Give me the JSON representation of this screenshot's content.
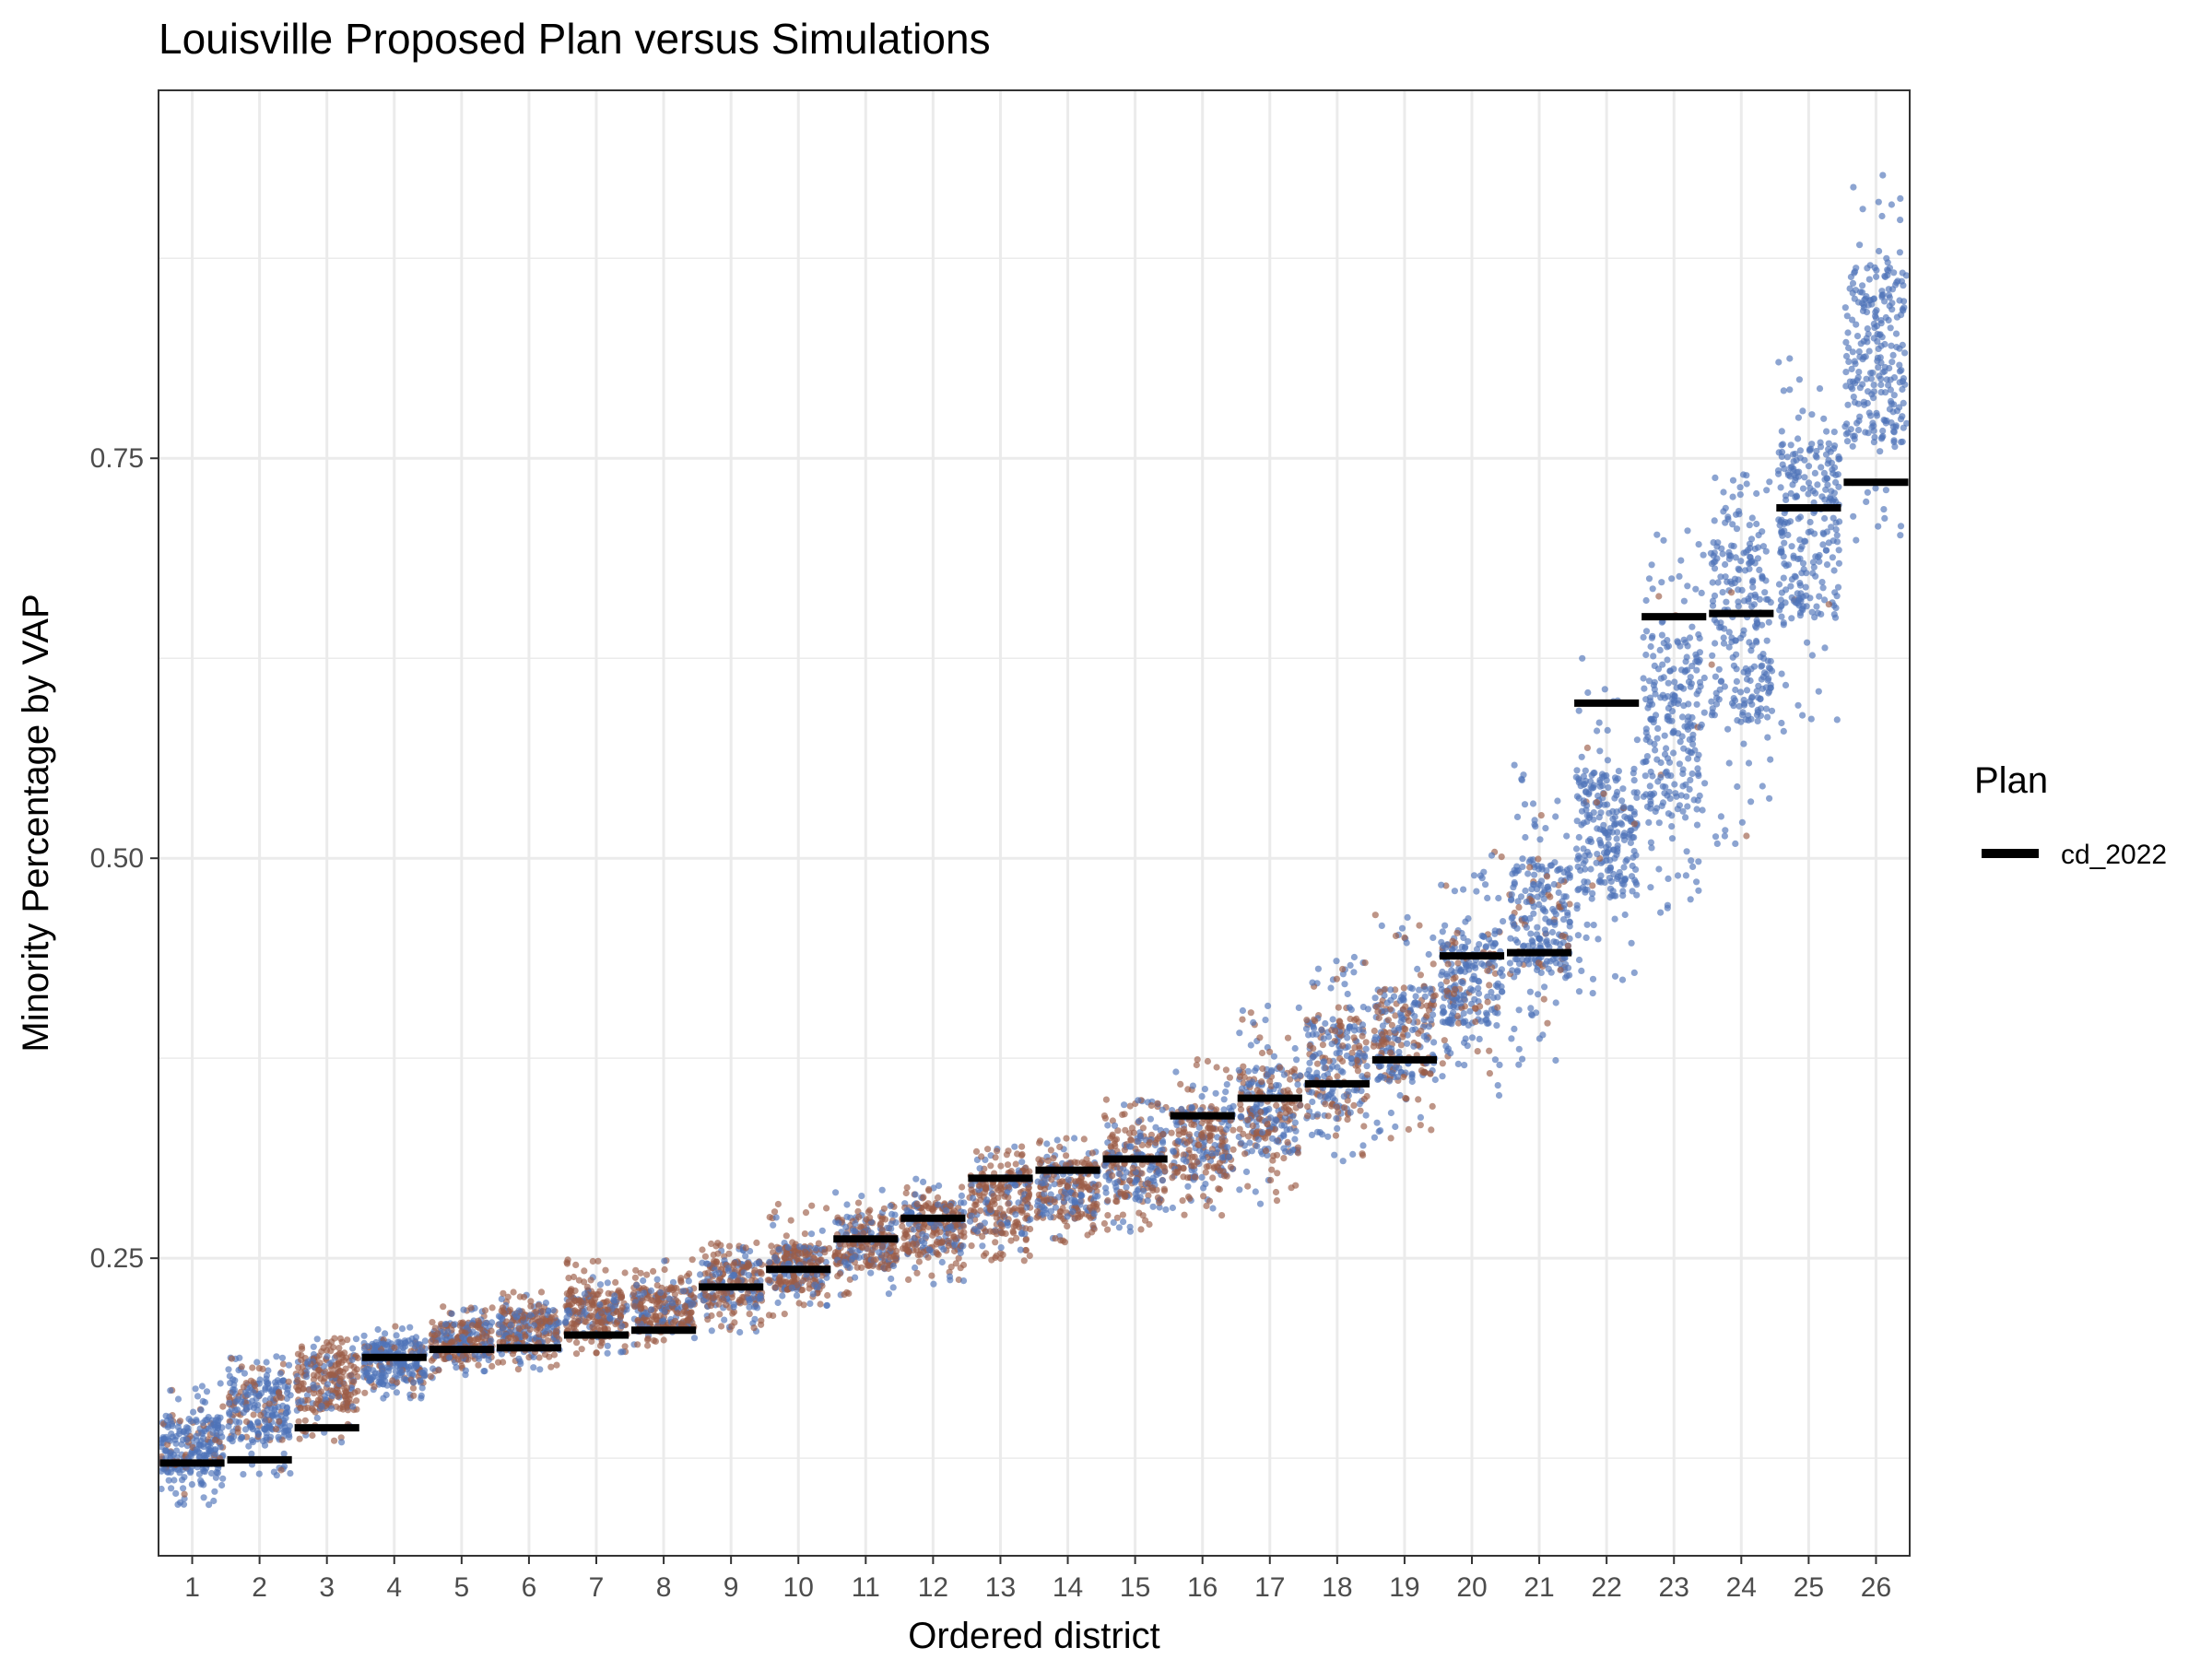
{
  "chart_data": {
    "type": "scatter",
    "title": "Louisville Proposed Plan versus Simulations",
    "xlabel": "Ordered district",
    "ylabel": "Minority Percentage by VAP",
    "categories": [
      "1",
      "2",
      "3",
      "4",
      "5",
      "6",
      "7",
      "8",
      "9",
      "10",
      "11",
      "12",
      "13",
      "14",
      "15",
      "16",
      "17",
      "18",
      "19",
      "20",
      "21",
      "22",
      "23",
      "24",
      "25",
      "26"
    ],
    "ylim": [
      0.064,
      0.98
    ],
    "yticks": [
      {
        "value": 0.25,
        "label": "0.25"
      },
      {
        "value": 0.5,
        "label": "0.50"
      },
      {
        "value": 0.75,
        "label": "0.75"
      }
    ],
    "yminor": [
      0.125,
      0.375,
      0.625,
      0.875
    ],
    "grid": true,
    "legend": {
      "title": "Plan",
      "placement": "right",
      "entries": [
        {
          "name": "cd_2022",
          "color": "#000000"
        }
      ]
    },
    "series": [
      {
        "name": "cd_2022",
        "type": "segment",
        "color": "#000000",
        "values": [
          0.122,
          0.124,
          0.144,
          0.188,
          0.193,
          0.194,
          0.202,
          0.205,
          0.232,
          0.243,
          0.262,
          0.275,
          0.3,
          0.305,
          0.312,
          0.339,
          0.35,
          0.359,
          0.374,
          0.439,
          0.441,
          0.597,
          0.651,
          0.653,
          0.719,
          0.735
        ]
      },
      {
        "type": "jitter",
        "description_colors": {
          "blue": "#4f73b9",
          "brown": "#9b5c47"
        },
        "min": [
          0.095,
          0.112,
          0.135,
          0.162,
          0.175,
          0.18,
          0.19,
          0.195,
          0.203,
          0.21,
          0.225,
          0.232,
          0.248,
          0.258,
          0.265,
          0.275,
          0.283,
          0.302,
          0.325,
          0.35,
          0.368,
          0.415,
          0.465,
          0.505,
          0.575,
          0.695
        ],
        "q1": [
          0.115,
          0.135,
          0.155,
          0.172,
          0.186,
          0.192,
          0.2,
          0.206,
          0.219,
          0.23,
          0.243,
          0.252,
          0.265,
          0.275,
          0.285,
          0.3,
          0.315,
          0.335,
          0.36,
          0.395,
          0.425,
          0.475,
          0.525,
          0.585,
          0.65,
          0.76
        ],
        "q3": [
          0.15,
          0.175,
          0.19,
          0.198,
          0.21,
          0.218,
          0.23,
          0.232,
          0.248,
          0.258,
          0.276,
          0.285,
          0.305,
          0.31,
          0.33,
          0.345,
          0.37,
          0.4,
          0.42,
          0.455,
          0.5,
          0.555,
          0.64,
          0.7,
          0.76,
          0.87
        ],
        "max": [
          0.175,
          0.19,
          0.2,
          0.208,
          0.22,
          0.232,
          0.25,
          0.25,
          0.26,
          0.285,
          0.293,
          0.3,
          0.32,
          0.325,
          0.35,
          0.375,
          0.41,
          0.44,
          0.465,
          0.505,
          0.57,
          0.625,
          0.705,
          0.74,
          0.82,
          0.93
        ],
        "brown_share": [
          0.18,
          0.22,
          0.7,
          0.18,
          0.55,
          0.55,
          0.72,
          0.72,
          0.55,
          0.68,
          0.55,
          0.62,
          0.65,
          0.55,
          0.55,
          0.55,
          0.45,
          0.4,
          0.45,
          0.2,
          0.12,
          0.04,
          0.02,
          0.01,
          0.01,
          0.0
        ]
      }
    ]
  }
}
